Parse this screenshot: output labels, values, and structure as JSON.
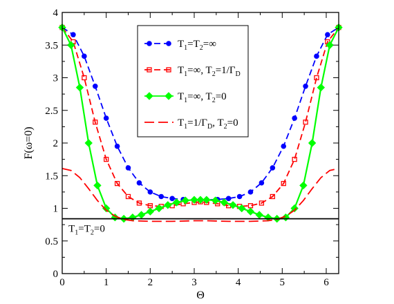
{
  "chart_data": {
    "type": "line",
    "xlabel": "Θ",
    "ylabel": "F(ω=0)",
    "xlim": [
      0,
      6.2832
    ],
    "ylim": [
      0,
      4
    ],
    "xticks": [
      0,
      1,
      2,
      3,
      4,
      5,
      6
    ],
    "yticks": [
      0,
      0.5,
      1,
      1.5,
      2,
      2.5,
      3,
      3.5,
      4
    ],
    "grid": false,
    "legend_position": "top-center",
    "series": [
      {
        "name": "T1=T2=∞",
        "color": "#0000ff",
        "style": "dashed",
        "marker": "circle",
        "points": [
          [
            0,
            3.77
          ],
          [
            0.25,
            3.66
          ],
          [
            0.5,
            3.33
          ],
          [
            0.75,
            2.87
          ],
          [
            1.0,
            2.38
          ],
          [
            1.25,
            1.95
          ],
          [
            1.5,
            1.62
          ],
          [
            1.75,
            1.39
          ],
          [
            2.0,
            1.25
          ],
          [
            2.25,
            1.18
          ],
          [
            2.5,
            1.15
          ],
          [
            2.75,
            1.135
          ],
          [
            3.0,
            1.13
          ],
          [
            3.1416,
            1.13
          ],
          [
            3.28,
            1.13
          ],
          [
            3.53,
            1.135
          ],
          [
            3.78,
            1.15
          ],
          [
            4.03,
            1.18
          ],
          [
            4.28,
            1.25
          ],
          [
            4.53,
            1.39
          ],
          [
            4.78,
            1.62
          ],
          [
            5.03,
            1.95
          ],
          [
            5.28,
            2.38
          ],
          [
            5.53,
            2.87
          ],
          [
            5.78,
            3.33
          ],
          [
            6.03,
            3.66
          ],
          [
            6.2832,
            3.77
          ]
        ]
      },
      {
        "name": "T1=∞, T2=1/ΓD",
        "color": "#ff0000",
        "style": "dashed",
        "marker": "square",
        "points": [
          [
            0,
            3.77
          ],
          [
            0.25,
            3.55
          ],
          [
            0.5,
            3.0
          ],
          [
            0.75,
            2.32
          ],
          [
            1.0,
            1.75
          ],
          [
            1.25,
            1.38
          ],
          [
            1.5,
            1.18
          ],
          [
            1.75,
            1.08
          ],
          [
            2.0,
            1.04
          ],
          [
            2.25,
            1.03
          ],
          [
            2.5,
            1.04
          ],
          [
            2.75,
            1.07
          ],
          [
            3.0,
            1.09
          ],
          [
            3.1416,
            1.1
          ],
          [
            3.28,
            1.09
          ],
          [
            3.53,
            1.07
          ],
          [
            3.78,
            1.04
          ],
          [
            4.03,
            1.03
          ],
          [
            4.28,
            1.04
          ],
          [
            4.53,
            1.08
          ],
          [
            4.78,
            1.18
          ],
          [
            5.03,
            1.38
          ],
          [
            5.28,
            1.75
          ],
          [
            5.53,
            2.32
          ],
          [
            5.78,
            3.0
          ],
          [
            6.03,
            3.55
          ],
          [
            6.2832,
            3.77
          ]
        ]
      },
      {
        "name": "T1=∞, T2=0",
        "color": "#00ff00",
        "style": "solid",
        "marker": "diamond",
        "points": [
          [
            0,
            3.77
          ],
          [
            0.2,
            3.5
          ],
          [
            0.4,
            2.85
          ],
          [
            0.6,
            2.0
          ],
          [
            0.8,
            1.35
          ],
          [
            1.0,
            1.0
          ],
          [
            1.2,
            0.86
          ],
          [
            1.4,
            0.84
          ],
          [
            1.6,
            0.86
          ],
          [
            1.8,
            0.9
          ],
          [
            2.0,
            0.95
          ],
          [
            2.2,
            1.0
          ],
          [
            2.4,
            1.05
          ],
          [
            2.6,
            1.09
          ],
          [
            2.8,
            1.12
          ],
          [
            3.0,
            1.13
          ],
          [
            3.1416,
            1.13
          ],
          [
            3.28,
            1.13
          ],
          [
            3.48,
            1.12
          ],
          [
            3.68,
            1.09
          ],
          [
            3.88,
            1.05
          ],
          [
            4.08,
            1.0
          ],
          [
            4.28,
            0.95
          ],
          [
            4.48,
            0.9
          ],
          [
            4.68,
            0.86
          ],
          [
            4.88,
            0.84
          ],
          [
            5.08,
            0.86
          ],
          [
            5.28,
            1.0
          ],
          [
            5.48,
            1.35
          ],
          [
            5.68,
            2.0
          ],
          [
            5.88,
            2.85
          ],
          [
            6.08,
            3.5
          ],
          [
            6.2832,
            3.77
          ]
        ]
      },
      {
        "name": "T1=1/ΓD, T2=0",
        "color": "#ff0000",
        "style": "long-dash",
        "marker": "none",
        "points": [
          [
            0,
            1.61
          ],
          [
            0.2,
            1.58
          ],
          [
            0.4,
            1.47
          ],
          [
            0.6,
            1.3
          ],
          [
            0.8,
            1.12
          ],
          [
            1.0,
            0.97
          ],
          [
            1.2,
            0.88
          ],
          [
            1.4,
            0.83
          ],
          [
            1.6,
            0.81
          ],
          [
            2.0,
            0.8
          ],
          [
            2.5,
            0.8
          ],
          [
            3.0,
            0.81
          ],
          [
            3.1416,
            0.81
          ],
          [
            3.28,
            0.81
          ],
          [
            3.78,
            0.8
          ],
          [
            4.28,
            0.8
          ],
          [
            4.68,
            0.81
          ],
          [
            4.88,
            0.83
          ],
          [
            5.08,
            0.88
          ],
          [
            5.28,
            0.97
          ],
          [
            5.48,
            1.12
          ],
          [
            5.68,
            1.3
          ],
          [
            5.88,
            1.47
          ],
          [
            6.08,
            1.58
          ],
          [
            6.2832,
            1.61
          ]
        ]
      },
      {
        "name": "T1=T2=0",
        "color": "#000000",
        "style": "solid",
        "marker": "none",
        "points": [
          [
            0,
            0.84
          ],
          [
            6.2832,
            0.84
          ]
        ]
      }
    ],
    "legend": [
      {
        "series": 0,
        "main": "T",
        "parts": [
          [
            "T",
            ""
          ],
          [
            "1",
            "sub"
          ],
          [
            "=T",
            ""
          ],
          [
            "2",
            "sub"
          ],
          [
            "=∞",
            ""
          ]
        ]
      },
      {
        "series": 1,
        "parts": [
          [
            "T",
            ""
          ],
          [
            "1",
            "sub"
          ],
          [
            "=∞, T",
            ""
          ],
          [
            "2",
            "sub"
          ],
          [
            "=1/Γ",
            ""
          ],
          [
            "D",
            "sub"
          ]
        ]
      },
      {
        "series": 2,
        "parts": [
          [
            "T",
            ""
          ],
          [
            "1",
            "sub"
          ],
          [
            "=∞, T",
            ""
          ],
          [
            "2",
            "sub"
          ],
          [
            "=0",
            ""
          ]
        ]
      },
      {
        "series": 3,
        "parts": [
          [
            "T",
            ""
          ],
          [
            "1",
            "sub"
          ],
          [
            "=1/Γ",
            ""
          ],
          [
            "D",
            "sub"
          ],
          [
            ", T",
            ""
          ],
          [
            "2",
            "sub"
          ],
          [
            "=0",
            ""
          ]
        ]
      }
    ],
    "annotation": {
      "parts": [
        [
          "T",
          ""
        ],
        [
          "1",
          "sub"
        ],
        [
          "=T",
          ""
        ],
        [
          "2",
          "sub"
        ],
        [
          "=0",
          ""
        ]
      ],
      "x": 0.08,
      "y": 0.6
    }
  }
}
